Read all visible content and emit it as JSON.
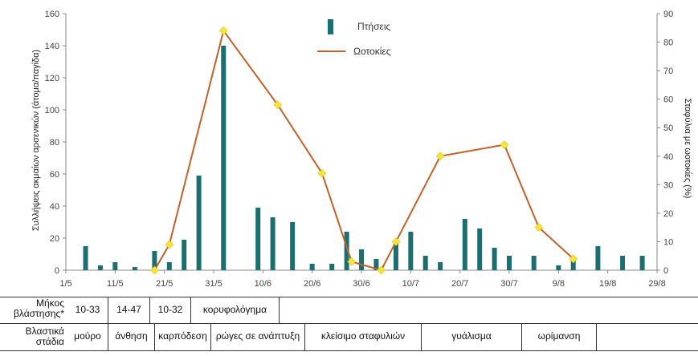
{
  "chart_data": {
    "type": "bar+line",
    "title": "",
    "ylabel_left": "Συλλήψεις ακμαίων αρσενικών (άτομα/παγίδα)",
    "ylabel_right": "Σταφύλια με ωοτοκίες (%)",
    "xlabel": "",
    "ylim_left": [
      0,
      160
    ],
    "ylim_right": [
      0,
      90
    ],
    "yticks_left": [
      "0",
      "20",
      "40",
      "60",
      "80",
      "100",
      "120",
      "140",
      "160"
    ],
    "yticks_right": [
      "0",
      "10",
      "20",
      "30",
      "40",
      "50",
      "60",
      "70",
      "80",
      "90"
    ],
    "x_tick_labels": [
      "1/5",
      "11/5",
      "21/5",
      "31/5",
      "10/6",
      "20/6",
      "30/6",
      "10/7",
      "20/7",
      "30/7",
      "9/8",
      "19/8",
      "29/8"
    ],
    "xlim_days": [
      0,
      120
    ],
    "legend_position": "top-center",
    "series": [
      {
        "name": "Πτήσεις",
        "kind": "bar",
        "color": "#1c6f70",
        "x_day": [
          4,
          7,
          10,
          14,
          18,
          21,
          24,
          27,
          32,
          39,
          42,
          46,
          50,
          54,
          57,
          60,
          63,
          67,
          70,
          73,
          76,
          81,
          84,
          87,
          90,
          95,
          100,
          103,
          108,
          113,
          117
        ],
        "values": [
          15,
          3,
          5,
          2,
          12,
          5,
          19,
          59,
          140,
          39,
          33,
          30,
          4,
          4,
          24,
          13,
          7,
          18,
          24,
          9,
          5,
          32,
          26,
          14,
          9,
          9,
          3,
          6,
          15,
          9,
          9
        ]
      },
      {
        "name": "Ωοτοκίες",
        "kind": "line",
        "color": "#c0612b",
        "marker_color": "#f2e63b",
        "x_day": [
          18,
          21,
          32,
          43,
          52,
          58,
          64,
          67,
          76,
          89,
          96,
          103
        ],
        "values": [
          0,
          9,
          84,
          58,
          34,
          3,
          0,
          10,
          40,
          44,
          15,
          4
        ]
      }
    ]
  },
  "stage_table": {
    "rows": [
      {
        "label": "Μήκος βλάστησης*",
        "cells": [
          "10-33",
          "14-47",
          "10-32",
          "κορυφολόγημα"
        ]
      },
      {
        "label": "Βλαστικά στάδια",
        "cells": [
          "μούρο",
          "άνθηση",
          "καρπόδεση",
          "ρώγες σε ανάπτυξη",
          "κλείσιμο σταφυλιών",
          "γυάλισμα",
          "ωρίμανση"
        ]
      }
    ]
  }
}
